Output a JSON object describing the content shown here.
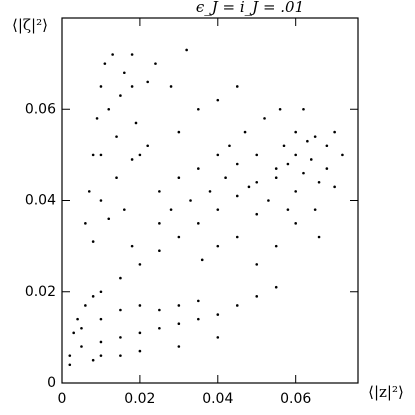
{
  "chart_data": {
    "type": "scatter",
    "title": "ϵ_J = i_J = .01",
    "x_label": "⟨|z|²⟩",
    "y_label": "⟨|ζ|²⟩",
    "color": "#000000",
    "xlim": [
      0,
      0.076
    ],
    "ylim": [
      0,
      0.08
    ],
    "xticks": [
      0,
      0.02,
      0.04,
      0.06
    ],
    "yticks": [
      0,
      0.02,
      0.04,
      0.06
    ],
    "x": [
      0.002,
      0.003,
      0.004,
      0.006,
      0.008,
      0.01,
      0.015,
      0.02,
      0.025,
      0.03,
      0.035,
      0.04,
      0.045,
      0.05,
      0.055,
      0.06,
      0.065,
      0.005,
      0.01,
      0.015,
      0.02,
      0.025,
      0.03,
      0.035,
      0.04,
      0.045,
      0.05,
      0.055,
      0.008,
      0.015,
      0.02,
      0.03,
      0.04,
      0.005,
      0.01,
      0.015,
      0.02,
      0.025,
      0.03,
      0.035,
      0.002,
      0.01,
      0.006,
      0.007,
      0.008,
      0.009,
      0.01,
      0.011,
      0.013,
      0.012,
      0.015,
      0.018,
      0.022,
      0.01,
      0.014,
      0.019,
      0.01,
      0.014,
      0.018,
      0.022,
      0.008,
      0.012,
      0.016,
      0.018,
      0.016,
      0.05,
      0.055,
      0.058,
      0.06,
      0.062,
      0.064,
      0.066,
      0.068,
      0.07,
      0.057,
      0.06,
      0.063,
      0.053,
      0.05,
      0.058,
      0.065,
      0.068,
      0.045,
      0.047,
      0.052,
      0.056,
      0.04,
      0.042,
      0.038,
      0.035,
      0.043,
      0.048,
      0.03,
      0.033,
      0.028,
      0.025,
      0.03,
      0.035,
      0.04,
      0.045,
      0.028,
      0.02,
      0.024,
      0.032,
      0.06,
      0.066,
      0.055,
      0.045,
      0.04,
      0.062,
      0.07,
      0.072,
      0.05,
      0.036,
      0.025,
      0.018
    ],
    "values": [
      0.006,
      0.011,
      0.014,
      0.017,
      0.019,
      0.02,
      0.023,
      0.026,
      0.029,
      0.032,
      0.035,
      0.038,
      0.041,
      0.044,
      0.047,
      0.05,
      0.054,
      0.008,
      0.009,
      0.01,
      0.011,
      0.012,
      0.013,
      0.014,
      0.015,
      0.017,
      0.019,
      0.021,
      0.005,
      0.006,
      0.007,
      0.008,
      0.01,
      0.012,
      0.014,
      0.016,
      0.017,
      0.016,
      0.017,
      0.018,
      0.004,
      0.006,
      0.035,
      0.042,
      0.05,
      0.058,
      0.065,
      0.07,
      0.072,
      0.06,
      0.063,
      0.065,
      0.066,
      0.05,
      0.054,
      0.057,
      0.04,
      0.045,
      0.049,
      0.052,
      0.031,
      0.036,
      0.038,
      0.072,
      0.068,
      0.05,
      0.045,
      0.048,
      0.042,
      0.046,
      0.049,
      0.044,
      0.047,
      0.043,
      0.052,
      0.055,
      0.053,
      0.04,
      0.037,
      0.038,
      0.038,
      0.052,
      0.048,
      0.055,
      0.058,
      0.06,
      0.05,
      0.045,
      0.042,
      0.047,
      0.052,
      0.043,
      0.045,
      0.04,
      0.038,
      0.042,
      0.055,
      0.06,
      0.062,
      0.065,
      0.065,
      0.05,
      0.07,
      0.073,
      0.035,
      0.032,
      0.03,
      0.032,
      0.03,
      0.06,
      0.055,
      0.05,
      0.026,
      0.027,
      0.035,
      0.03
    ]
  }
}
